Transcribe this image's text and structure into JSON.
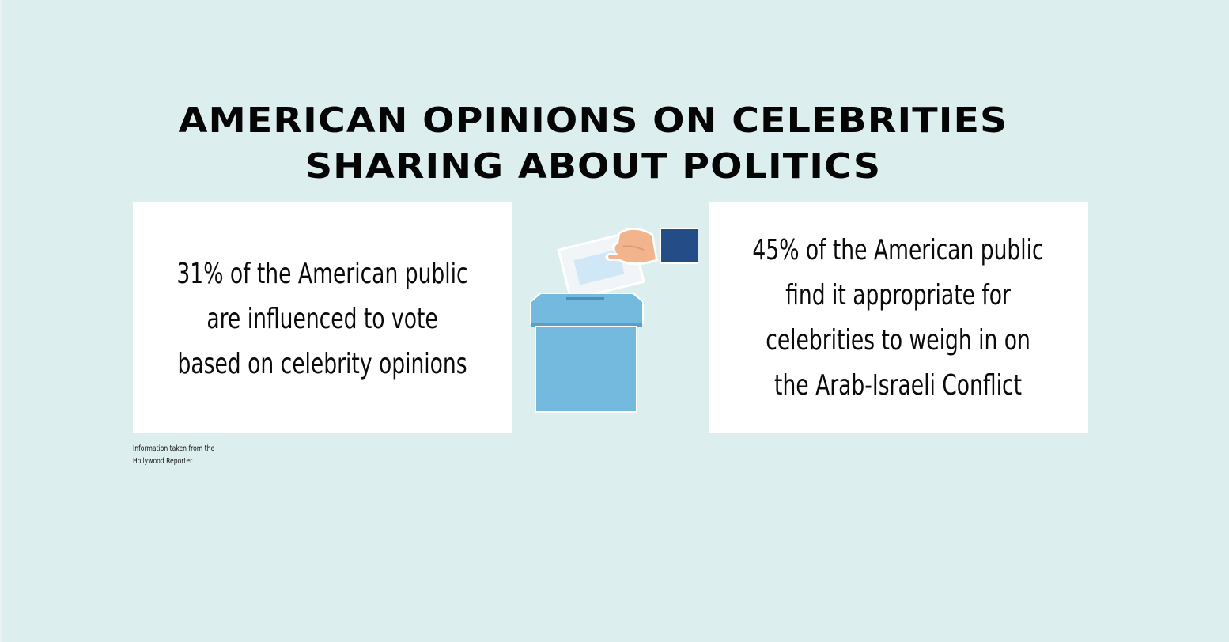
{
  "title": {
    "line1": "AMERICAN OPINIONS ON CELEBRITIES",
    "line2": "SHARING ABOUT POLITICS"
  },
  "left_card": {
    "lines": [
      "31% of the American public",
      "are influenced to vote",
      "based on celebrity opinions"
    ]
  },
  "right_card": {
    "lines": [
      "45% of the American public",
      "find it appropriate for",
      "celebrities to weigh in on",
      "the Arab-Israeli Conflict"
    ]
  },
  "source": {
    "line1": "Information taken from the",
    "line2": "Hollywood Reporter"
  },
  "illustration": {
    "icon": "ballot-box-icon",
    "colors": {
      "background": "#dcefee",
      "box": "#74b9de",
      "box_band": "#5a9fc8",
      "sleeve": "#244c86",
      "hand": "#f2b48d",
      "ballot": "#cfe7f7"
    }
  }
}
